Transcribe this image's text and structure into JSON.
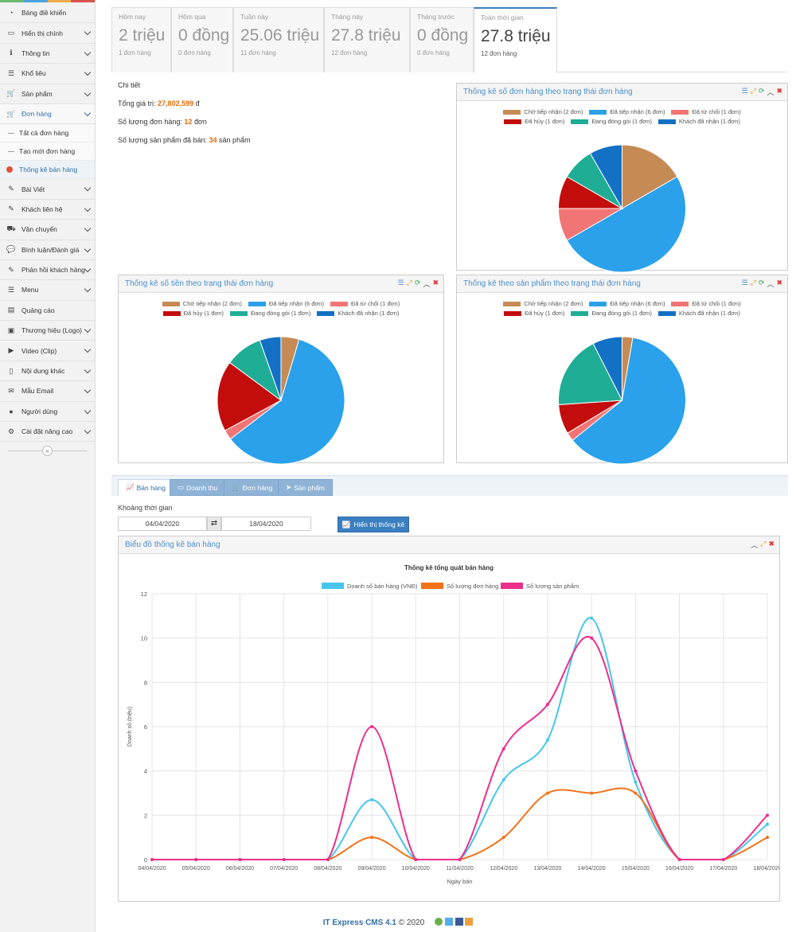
{
  "sidebar": {
    "items": [
      {
        "label": "Bảng điề khiển",
        "icon": "dashboard-icon",
        "chev": false
      },
      {
        "label": "Hiển thị chính",
        "icon": "monitor-icon",
        "chev": true
      },
      {
        "label": "Thông tin",
        "icon": "info-icon",
        "chev": true
      },
      {
        "label": "Khổ liêu",
        "icon": "list-icon",
        "chev": true
      },
      {
        "label": "Sản phẩm",
        "icon": "cart-icon",
        "chev": true
      },
      {
        "label": "Đơn hàng",
        "icon": "cart-icon",
        "chev": true,
        "active": true
      }
    ],
    "subitems": [
      {
        "label": "Tất cả đơn hàng"
      },
      {
        "label": "Tạo mới đơn hàng"
      },
      {
        "label": "Thống kê bán hàng",
        "active": true
      }
    ],
    "items2": [
      {
        "label": "Bài Viết",
        "icon": "edit-icon"
      },
      {
        "label": "Khách liên hệ",
        "icon": "edit-icon"
      },
      {
        "label": "Vận chuyển",
        "icon": "truck-icon"
      },
      {
        "label": "Bình luận/Đánh giá",
        "icon": "comment-icon"
      },
      {
        "label": "Phản hồi khách hàng",
        "icon": "edit-icon"
      },
      {
        "label": "Menu",
        "icon": "list-icon"
      },
      {
        "label": "Quảng cáo",
        "icon": "ads-icon"
      },
      {
        "label": "Thương hiệu (Logo)",
        "icon": "image-icon"
      },
      {
        "label": "Video (Clip)",
        "icon": "video-icon"
      },
      {
        "label": "Nội dung khác",
        "icon": "file-icon"
      },
      {
        "label": "Mẫu Email",
        "icon": "envelope-icon"
      },
      {
        "label": "Người dùng",
        "icon": "user-icon"
      },
      {
        "label": "Cài đặt nâng cao",
        "icon": "gear-icon"
      }
    ],
    "collapse_label": "«"
  },
  "stats": [
    {
      "label": "Hôm nay",
      "value": "2 triệu",
      "sub": "1 đơn hàng"
    },
    {
      "label": "Hôm qua",
      "value": "0 đồng",
      "sub": "0 đơn hàng"
    },
    {
      "label": "Tuần này",
      "value": "25.06 triệu",
      "sub": "11 đơn hàng"
    },
    {
      "label": "Tháng này",
      "value": "27.8 triệu",
      "sub": "12 đơn hàng"
    },
    {
      "label": "Tháng trước",
      "value": "0 đồng",
      "sub": "0 đơn hàng"
    },
    {
      "label": "Toàn thời gian",
      "value": "27.8 triệu",
      "sub": "12 đơn hàng",
      "active": true
    }
  ],
  "detail": {
    "title": "Chi tiết",
    "total_label": "Tổng giá trị:",
    "total_value": "27,802,599",
    "total_unit": "đ",
    "orders_label": "Số lượng đơn hàng:",
    "orders_value": "12",
    "orders_unit": "đơn",
    "products_label": "Số lượng sản phẩm đã bán:",
    "products_value": "34",
    "products_unit": "sản phẩm"
  },
  "legend": [
    {
      "label": "Chờ tiếp nhận (2 đơn)",
      "color": "#c68b55"
    },
    {
      "label": "Đã tiếp nhận (6 đơn)",
      "color": "#2aa1ea"
    },
    {
      "label": "Đã từ chối (1 đơn)",
      "color": "#f27575"
    },
    {
      "label": "Đã hủy (1 đơn)",
      "color": "#c30d0d"
    },
    {
      "label": "Đang đóng gói (1 đơn)",
      "color": "#1fae95"
    },
    {
      "label": "Khách đã nhận (1 đơn)",
      "color": "#1271c4"
    }
  ],
  "pies": {
    "orders": {
      "title": "Thống kê số đơn hàng theo trạng thái đơn hàng",
      "values": [
        2,
        6,
        1,
        1,
        1,
        1
      ]
    },
    "money": {
      "title": "Thống kê số tiền theo trạng thái đơn hàng",
      "values": [
        4.6,
        60,
        2.5,
        18,
        9.5,
        5.4
      ]
    },
    "products": {
      "title": "Thống kê theo sản phẩm theo trạng thái đơn hàng",
      "values": [
        2.7,
        61.5,
        2.2,
        7.5,
        18.6,
        7.5
      ]
    }
  },
  "tabs": [
    {
      "label": "Bán hàng",
      "icon": "line-chart-icon",
      "active": true
    },
    {
      "label": "Doanh thu",
      "icon": "money-icon"
    },
    {
      "label": "Đơn hàng",
      "icon": "cart-icon"
    },
    {
      "label": "Sản phẩm",
      "icon": "rocket-icon"
    }
  ],
  "range": {
    "label": "Khoảng thời gian",
    "from": "04/04/2020",
    "to": "18/04/2020",
    "swap_icon": "⇄",
    "button": "Hiển thị thống kê"
  },
  "line_panel": {
    "title": "Biểu đồ thống kê bán hàng"
  },
  "chart_data": {
    "type": "line",
    "title": "Thống kê tổng quát bán hàng",
    "xlabel": "Ngày bán",
    "ylabel": "Doanh số (triệu)",
    "ylim": [
      0,
      12
    ],
    "yticks": [
      "0",
      "2",
      "4",
      "6",
      "8",
      "10",
      "12"
    ],
    "categories": [
      "04/04/2020",
      "05/04/2020",
      "06/04/2020",
      "07/04/2020",
      "08/04/2020",
      "09/04/2020",
      "10/04/2020",
      "11/04/2020",
      "12/04/2020",
      "13/04/2020",
      "14/04/2020",
      "15/04/2020",
      "16/04/2020",
      "17/04/2020",
      "18/04/2020"
    ],
    "series": [
      {
        "name": "Doanh số bán hàng (VNĐ)",
        "color": "#48c5ec",
        "values": [
          0,
          0,
          0,
          0,
          0,
          2.7,
          0,
          0,
          3.6,
          5.4,
          10.9,
          3.5,
          0,
          0,
          1.6
        ]
      },
      {
        "name": "Số lượng đơn hàng",
        "color": "#f0731b",
        "values": [
          0,
          0,
          0,
          0,
          0,
          1,
          0,
          0,
          1,
          3,
          3,
          3,
          0,
          0,
          1
        ]
      },
      {
        "name": "Số lượng sản phẩm",
        "color": "#ec2f8c",
        "values": [
          0,
          0,
          0,
          0,
          0,
          6,
          0,
          0,
          5,
          7,
          10,
          4,
          0,
          0,
          2
        ]
      }
    ],
    "grid": true,
    "legend": "top"
  },
  "footer": {
    "brand": "IT Express CMS 4.1",
    "text": "© 2020"
  }
}
